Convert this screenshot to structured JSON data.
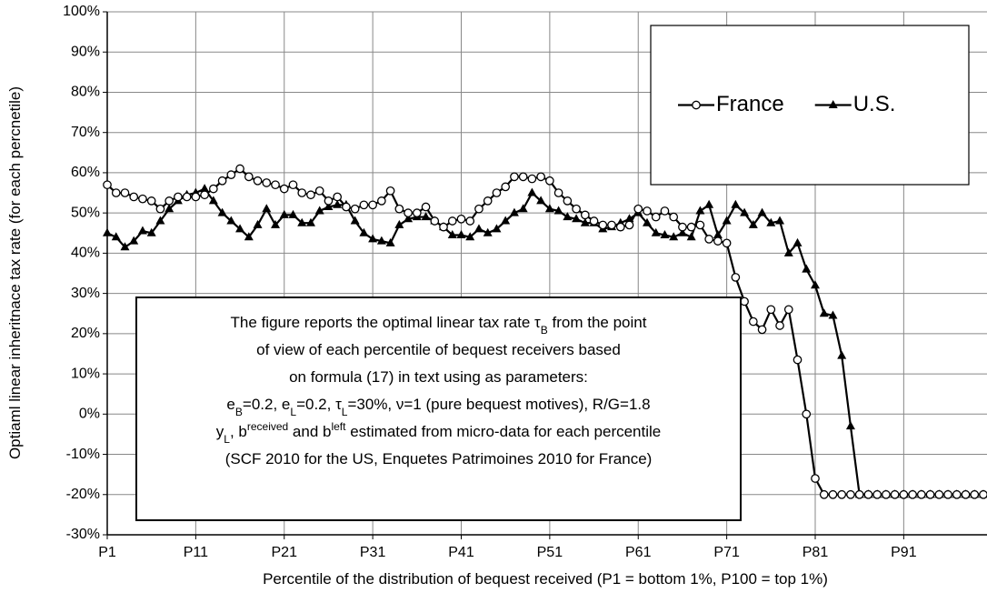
{
  "chart_data": {
    "type": "line",
    "y_label": "Optiaml linear inheritnace tax rate (for each percnetile)",
    "x_label": "Percentile of the distribution of bequest received (P1 = bottom 1%, P100 = top 1%)",
    "categories": [
      "P1",
      null,
      null,
      null,
      null,
      null,
      null,
      null,
      null,
      null,
      "P11",
      null,
      null,
      null,
      null,
      null,
      null,
      null,
      null,
      null,
      "P21",
      null,
      null,
      null,
      null,
      null,
      null,
      null,
      null,
      null,
      "P31",
      null,
      null,
      null,
      null,
      null,
      null,
      null,
      null,
      null,
      "P41",
      null,
      null,
      null,
      null,
      null,
      null,
      null,
      null,
      null,
      "P51",
      null,
      null,
      null,
      null,
      null,
      null,
      null,
      null,
      null,
      "P61",
      null,
      null,
      null,
      null,
      null,
      null,
      null,
      null,
      null,
      "P71",
      null,
      null,
      null,
      null,
      null,
      null,
      null,
      null,
      null,
      "P81",
      null,
      null,
      null,
      null,
      null,
      null,
      null,
      null,
      null,
      "P91",
      null,
      null,
      null,
      null,
      null,
      null,
      null,
      null,
      null
    ],
    "series": [
      {
        "name": "France",
        "color": "#000000",
        "marker": "circle",
        "values": [
          57,
          55,
          55,
          54,
          53.5,
          53,
          51,
          53,
          54,
          54,
          54,
          54.5,
          56,
          58,
          59.5,
          61,
          59,
          58,
          57.5,
          57,
          56,
          57,
          55,
          54.5,
          55.5,
          53,
          54,
          51.5,
          51,
          52,
          52,
          53,
          55.5,
          51,
          50,
          50,
          51.5,
          48,
          46.5,
          48,
          48.5,
          48,
          51,
          53,
          55,
          56.5,
          59,
          59,
          58.5,
          59,
          58,
          55,
          53,
          51,
          49.5,
          48,
          47,
          47,
          46.5,
          47,
          51,
          50.5,
          49,
          50.5,
          49,
          46.5,
          46.5,
          47,
          43.5,
          43,
          42.5,
          34,
          28,
          23,
          21,
          26,
          22,
          26,
          13.5,
          0,
          -16,
          -20,
          -20,
          -20,
          -20,
          -20,
          -20,
          -20,
          -20,
          -20,
          -20,
          -20,
          -20,
          -20,
          -20,
          -20,
          -20,
          -20,
          -20,
          -20
        ]
      },
      {
        "name": "U.S.",
        "color": "#000000",
        "marker": "triangle",
        "values": [
          45,
          44,
          41.5,
          43,
          45.5,
          45,
          48,
          51,
          53,
          54.5,
          55,
          56,
          53,
          50,
          48,
          46,
          44,
          47,
          51,
          47,
          49.5,
          49.5,
          47.5,
          47.5,
          50.5,
          51.5,
          52,
          52,
          48,
          45,
          43.5,
          43,
          42.5,
          47,
          48.5,
          49,
          49,
          48,
          46.5,
          44.5,
          44.5,
          44,
          46,
          45,
          46,
          48,
          50,
          51,
          55,
          53,
          51,
          50.5,
          49,
          48.5,
          47.5,
          47.5,
          46,
          46.5,
          47.5,
          48.5,
          50,
          47.5,
          45,
          44.5,
          44,
          45,
          44,
          50.5,
          52,
          44.5,
          48,
          52,
          50,
          47,
          50,
          47.5,
          48,
          40,
          42.5,
          36,
          32,
          25,
          24.5,
          14.5,
          -3,
          -20,
          -20,
          -20,
          -20,
          -20,
          -20,
          -20,
          -20,
          -20,
          -20,
          -20,
          -20,
          -20,
          -20,
          -20
        ]
      }
    ],
    "ylim": [
      -30,
      100
    ],
    "yticks": [
      {
        "value": -30,
        "label": "-30%"
      },
      {
        "value": -20,
        "label": "-20%"
      },
      {
        "value": -10,
        "label": "-10%"
      },
      {
        "value": 0,
        "label": "0%"
      },
      {
        "value": 10,
        "label": "10%"
      },
      {
        "value": 20,
        "label": "20%"
      },
      {
        "value": 30,
        "label": "30%"
      },
      {
        "value": 40,
        "label": "40%"
      },
      {
        "value": 50,
        "label": "50%"
      },
      {
        "value": 60,
        "label": "60%"
      },
      {
        "value": 70,
        "label": "70%"
      },
      {
        "value": 80,
        "label": "80%"
      },
      {
        "value": 90,
        "label": "90%"
      },
      {
        "value": 100,
        "label": "100%"
      }
    ],
    "grid": true,
    "legend": "top-right",
    "annotation": {
      "lines": [
        [
          "The figure reports the optimal linear tax rate τ",
          {
            "sub": "B"
          },
          " from the point"
        ],
        [
          "of view of each percentile of bequest receivers based"
        ],
        [
          "on formula (17) in text using as parameters:"
        ],
        [
          "e",
          {
            "sub": "B"
          },
          "=0.2, e",
          {
            "sub": "L"
          },
          "=0.2, τ",
          {
            "sub": "L"
          },
          "=30%, ν=1 (pure bequest motives), R/G=1.8"
        ],
        [
          "y",
          {
            "sub": "L"
          },
          ", b",
          {
            "sup": "received"
          },
          " and b",
          {
            "sup": "left"
          },
          " estimated from micro-data for each percentile"
        ],
        [
          "(SCF 2010 for the US, Enquetes Patrimoines 2010 for France)"
        ]
      ]
    }
  }
}
